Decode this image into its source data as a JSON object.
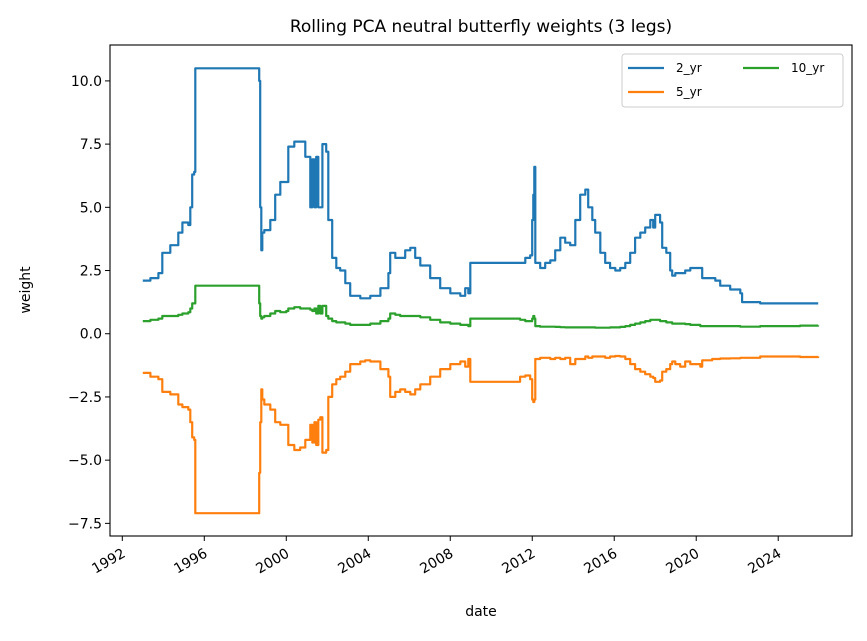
{
  "chart_data": {
    "type": "line",
    "title": "Rolling PCA neutral butterfly weights (3 legs)",
    "xlabel": "date",
    "ylabel": "weight",
    "xlim": [
      1991.4,
      2027.6
    ],
    "ylim": [
      -8.0,
      11.42
    ],
    "x_ticks": [
      1992,
      1996,
      2000,
      2004,
      2008,
      2012,
      2016,
      2020,
      2024
    ],
    "x_tick_labels": [
      "1992",
      "1996",
      "2000",
      "2004",
      "2008",
      "2012",
      "2016",
      "2020",
      "2024"
    ],
    "y_ticks": [
      -7.5,
      -5.0,
      -2.5,
      0.0,
      2.5,
      5.0,
      7.5,
      10.0
    ],
    "y_tick_labels": [
      "−7.5",
      "−5.0",
      "−2.5",
      "0.0",
      "2.5",
      "5.0",
      "7.5",
      "10.0"
    ],
    "grid": false,
    "legend": {
      "placement": "upper-right",
      "columns": 2
    },
    "x": [
      1993.0,
      1993.37,
      1993.76,
      1993.95,
      1994.34,
      1994.73,
      1994.93,
      1995.22,
      1995.32,
      1995.41,
      1995.51,
      1995.56,
      1998.59,
      1998.68,
      1998.73,
      1998.78,
      1998.83,
      1998.93,
      1999.22,
      1999.46,
      1999.71,
      2000.0,
      2000.1,
      2000.39,
      2000.68,
      2000.93,
      2001.17,
      2001.27,
      2001.37,
      2001.46,
      2001.56,
      2001.66,
      2001.76,
      2001.95,
      2002.05,
      2002.24,
      2002.44,
      2002.63,
      2002.88,
      2003.12,
      2003.61,
      2003.85,
      2004.1,
      2004.59,
      2004.98,
      2005.07,
      2005.32,
      2005.56,
      2005.8,
      2006.05,
      2006.29,
      2006.54,
      2007.02,
      2007.51,
      2008.0,
      2008.49,
      2008.73,
      2008.88,
      2008.98,
      2011.41,
      2011.66,
      2011.9,
      2012.0,
      2012.05,
      2012.1,
      2012.15,
      2012.39,
      2012.63,
      2012.88,
      2013.12,
      2013.37,
      2013.61,
      2013.85,
      2014.1,
      2014.34,
      2014.59,
      2014.73,
      2014.93,
      2015.07,
      2015.32,
      2015.56,
      2015.8,
      2016.05,
      2016.29,
      2016.54,
      2016.78,
      2017.02,
      2017.27,
      2017.51,
      2017.76,
      2017.9,
      2018.0,
      2018.24,
      2018.34,
      2018.54,
      2018.73,
      2018.83,
      2018.98,
      2019.22,
      2019.46,
      2019.71,
      2020.2,
      2020.29,
      2020.78,
      2020.93,
      2021.17,
      2021.66,
      2022.15,
      2022.24,
      2023.12,
      2024.1,
      2025.07,
      2025.95
    ],
    "series": [
      {
        "name": "2_yr",
        "color": "#1f77b4",
        "values": [
          2.1,
          2.2,
          2.4,
          3.2,
          3.5,
          4.0,
          4.4,
          4.3,
          5.0,
          6.3,
          6.4,
          10.5,
          10.5,
          10.0,
          5.0,
          3.3,
          4.0,
          4.1,
          4.5,
          5.5,
          6.0,
          6.0,
          7.4,
          7.6,
          7.6,
          7.0,
          5.0,
          6.9,
          5.0,
          7.0,
          5.0,
          5.0,
          7.5,
          7.2,
          4.5,
          3.0,
          2.6,
          2.5,
          2.0,
          1.5,
          1.4,
          1.4,
          1.5,
          1.8,
          2.4,
          3.2,
          3.0,
          3.0,
          3.3,
          3.4,
          3.0,
          2.7,
          2.2,
          1.8,
          1.6,
          1.5,
          1.8,
          1.6,
          2.8,
          2.8,
          3.0,
          3.1,
          4.5,
          5.5,
          6.6,
          2.8,
          2.6,
          2.8,
          2.9,
          3.3,
          3.8,
          3.6,
          3.5,
          4.5,
          5.5,
          5.7,
          5.0,
          4.5,
          4.0,
          3.2,
          2.8,
          2.6,
          2.5,
          2.6,
          2.8,
          3.2,
          3.8,
          4.0,
          4.2,
          4.5,
          4.2,
          4.7,
          4.4,
          3.4,
          3.2,
          2.5,
          2.3,
          2.4,
          2.4,
          2.5,
          2.6,
          2.6,
          2.2,
          2.2,
          2.1,
          1.9,
          1.75,
          1.6,
          1.25,
          1.2,
          1.2,
          1.2,
          1.2
        ]
      },
      {
        "name": "5_yr",
        "color": "#ff7f0e",
        "values": [
          -1.55,
          -1.7,
          -1.8,
          -2.3,
          -2.4,
          -2.8,
          -2.9,
          -3.0,
          -3.5,
          -4.1,
          -4.2,
          -7.1,
          -7.1,
          -5.5,
          -3.5,
          -2.2,
          -2.6,
          -2.8,
          -3.0,
          -3.5,
          -3.6,
          -3.6,
          -4.4,
          -4.6,
          -4.5,
          -4.2,
          -3.6,
          -4.3,
          -3.5,
          -4.4,
          -3.4,
          -3.3,
          -4.7,
          -4.6,
          -2.5,
          -2.0,
          -1.8,
          -1.7,
          -1.5,
          -1.2,
          -1.1,
          -1.05,
          -1.1,
          -1.4,
          -1.7,
          -2.5,
          -2.3,
          -2.2,
          -2.3,
          -2.4,
          -2.2,
          -2.0,
          -1.7,
          -1.4,
          -1.2,
          -1.1,
          -1.3,
          -1.0,
          -1.9,
          -1.7,
          -1.65,
          -1.8,
          -2.6,
          -2.7,
          -2.6,
          -1.0,
          -0.95,
          -0.95,
          -1.0,
          -0.95,
          -1.0,
          -0.95,
          -1.2,
          -1.0,
          -1.0,
          -0.9,
          -0.95,
          -0.9,
          -0.9,
          -0.9,
          -0.95,
          -0.9,
          -0.88,
          -0.9,
          -1.0,
          -1.2,
          -1.4,
          -1.5,
          -1.6,
          -1.7,
          -1.75,
          -1.9,
          -1.85,
          -1.5,
          -1.4,
          -1.2,
          -1.1,
          -1.2,
          -1.3,
          -1.1,
          -1.2,
          -1.3,
          -1.05,
          -1.0,
          -1.0,
          -0.98,
          -0.97,
          -0.95,
          -0.95,
          -0.9,
          -0.9,
          -0.92,
          -0.9
        ]
      },
      {
        "name": "10_yr",
        "color": "#2ca02c",
        "values": [
          0.5,
          0.55,
          0.6,
          0.7,
          0.7,
          0.75,
          0.8,
          0.85,
          1.0,
          1.2,
          1.2,
          1.9,
          1.9,
          1.2,
          0.7,
          0.6,
          0.65,
          0.7,
          0.8,
          0.9,
          0.85,
          0.9,
          1.0,
          1.05,
          1.0,
          1.0,
          0.95,
          0.9,
          1.0,
          0.8,
          1.1,
          0.8,
          1.1,
          0.7,
          0.6,
          0.5,
          0.45,
          0.45,
          0.4,
          0.35,
          0.35,
          0.35,
          0.4,
          0.5,
          0.6,
          0.8,
          0.75,
          0.7,
          0.7,
          0.7,
          0.7,
          0.65,
          0.55,
          0.45,
          0.4,
          0.35,
          0.35,
          0.3,
          0.6,
          0.55,
          0.5,
          0.5,
          0.6,
          0.7,
          0.6,
          0.3,
          0.28,
          0.28,
          0.28,
          0.27,
          0.26,
          0.25,
          0.25,
          0.25,
          0.25,
          0.25,
          0.25,
          0.25,
          0.24,
          0.24,
          0.24,
          0.25,
          0.25,
          0.27,
          0.3,
          0.35,
          0.4,
          0.45,
          0.5,
          0.55,
          0.55,
          0.55,
          0.5,
          0.5,
          0.45,
          0.45,
          0.4,
          0.4,
          0.4,
          0.38,
          0.35,
          0.3,
          0.3,
          0.3,
          0.3,
          0.3,
          0.3,
          0.28,
          0.28,
          0.3,
          0.3,
          0.32,
          0.33
        ]
      }
    ]
  }
}
